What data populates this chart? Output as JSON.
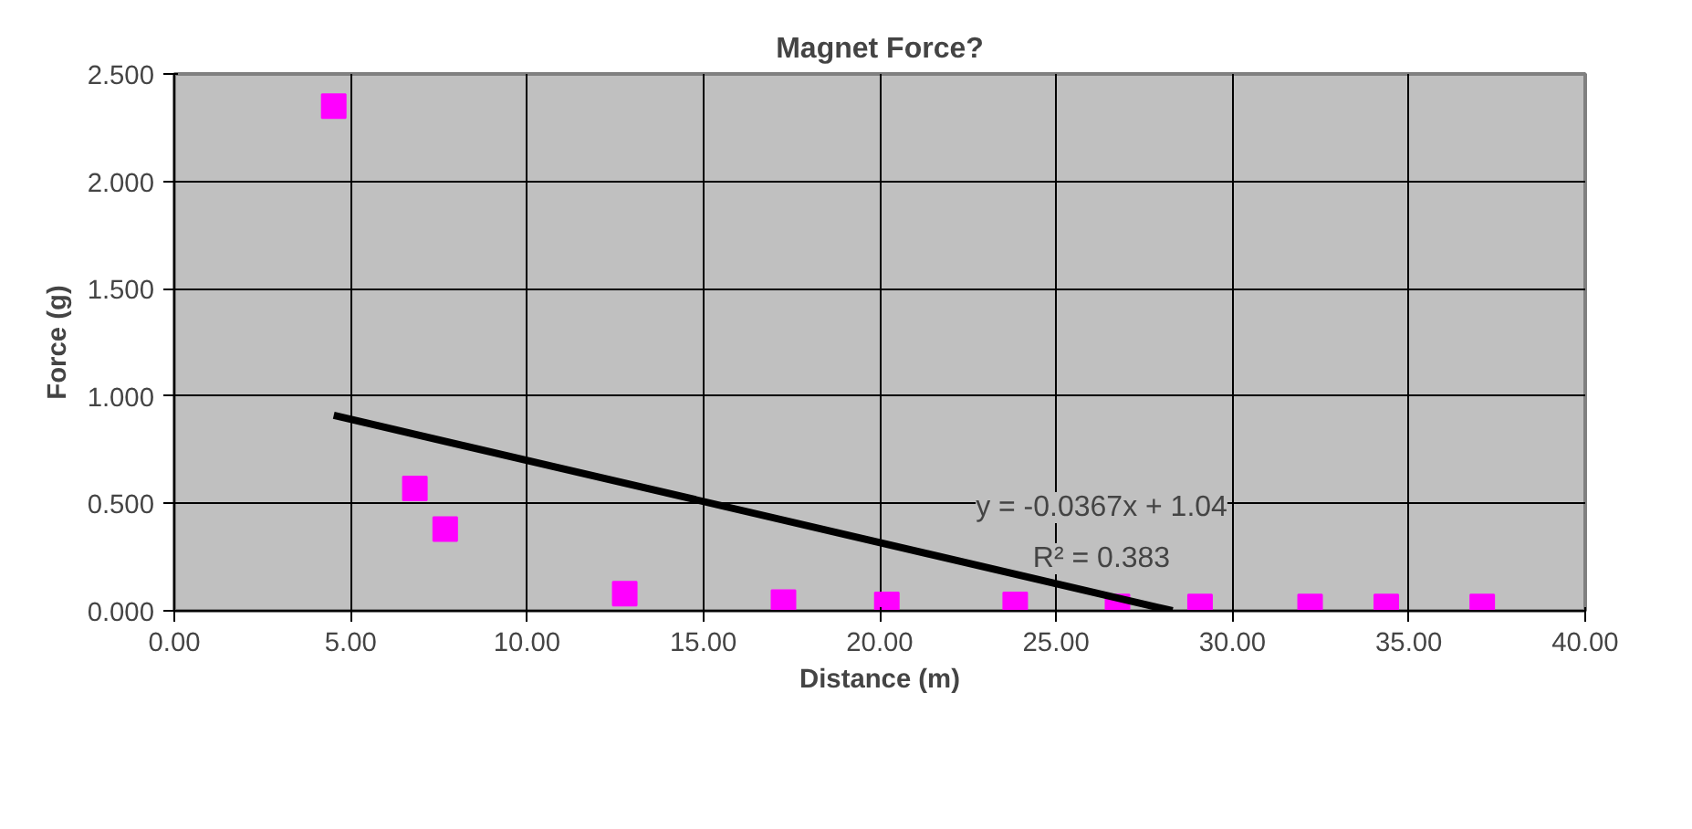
{
  "chart_data": {
    "type": "scatter",
    "title": "Magnet Force?",
    "xlabel": "Distance (m)",
    "ylabel": "Force (g)",
    "xlim": [
      0,
      40
    ],
    "ylim": [
      0,
      2.5
    ],
    "xticks": [
      {
        "value": 0,
        "label": "0.00"
      },
      {
        "value": 5,
        "label": "5.00"
      },
      {
        "value": 10,
        "label": "10.00"
      },
      {
        "value": 15,
        "label": "15.00"
      },
      {
        "value": 20,
        "label": "20.00"
      },
      {
        "value": 25,
        "label": "25.00"
      },
      {
        "value": 30,
        "label": "30.00"
      },
      {
        "value": 35,
        "label": "35.00"
      },
      {
        "value": 40,
        "label": "40.00"
      }
    ],
    "yticks": [
      {
        "value": 0,
        "label": "0.000"
      },
      {
        "value": 0.5,
        "label": "0.500"
      },
      {
        "value": 1,
        "label": "1.000"
      },
      {
        "value": 1.5,
        "label": "1.500"
      },
      {
        "value": 2,
        "label": "2.000"
      },
      {
        "value": 2.5,
        "label": "2.500"
      }
    ],
    "grid": true,
    "series": [
      {
        "marker": "square",
        "color": "#ff00ff",
        "x": [
          4.52,
          6.82,
          7.68,
          12.77,
          17.27,
          20.2,
          23.84,
          26.74,
          29.08,
          32.2,
          34.36,
          37.08
        ],
        "values": [
          2.35,
          0.57,
          0.38,
          0.08,
          0.04,
          0.03,
          0.03,
          0.02,
          0.02,
          0.02,
          0.02,
          0.02
        ]
      },
      {
        "type": "line",
        "color": "#000000",
        "x": [
          4.52,
          28.3
        ],
        "values": [
          0.91,
          0.0
        ]
      }
    ],
    "annotations": [
      "y = -0.0367x + 1.04",
      "R² = 0.383"
    ]
  }
}
